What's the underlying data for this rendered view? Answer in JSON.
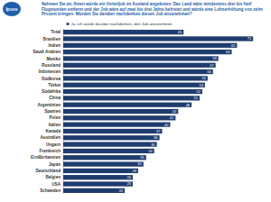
{
  "logo": "Ipsos",
  "chart_data": {
    "type": "bar",
    "orientation": "horizontal",
    "title": "Nehmen Sie an, Ihnen würde ein Vorteiljob im Ausland angeboten. Das Land wäre mindestens drei bis fünf Flugstunden entfernt und der Job wäre auf zwei bis drei Jahre befristet und würde eine Lohnerhöhung von zehn Prozent bringen. Würden Sie darüber nachdenken diesen Job anzunehmen?",
    "subtitle": "Ja, ich würde darüber nachdenken, den Job anzunehmen",
    "categories": [
      "Total",
      "Brasilien",
      "Indien",
      "Saudi Arabien",
      "Mexiko",
      "Russland",
      "Indonesien",
      "Südkorea",
      "Türkei",
      "Südafrika",
      "China",
      "Argentinien",
      "Spanien",
      "Polen",
      "Italien",
      "Kanada",
      "Australien",
      "Ungarn",
      "Frankreich",
      "Großbritannien",
      "Japan",
      "Deutschland",
      "Belgien",
      "USA",
      "Schweden"
    ],
    "values": [
      45,
      71,
      65,
      63,
      58,
      57,
      56,
      54,
      53,
      52,
      51,
      48,
      43,
      42,
      40,
      37,
      36,
      35,
      34,
      31,
      30,
      28,
      26,
      26,
      23
    ],
    "color": "#1f3c6e",
    "xlim": [
      0,
      75
    ],
    "tick_labels": "y",
    "data_labels": true,
    "grid": false
  }
}
